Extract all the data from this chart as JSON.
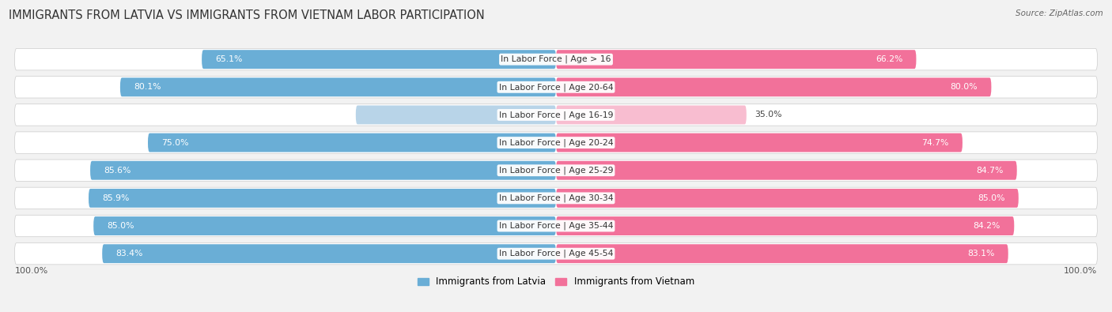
{
  "title": "IMMIGRANTS FROM LATVIA VS IMMIGRANTS FROM VIETNAM LABOR PARTICIPATION",
  "source": "Source: ZipAtlas.com",
  "categories": [
    "In Labor Force | Age > 16",
    "In Labor Force | Age 20-64",
    "In Labor Force | Age 16-19",
    "In Labor Force | Age 20-24",
    "In Labor Force | Age 25-29",
    "In Labor Force | Age 30-34",
    "In Labor Force | Age 35-44",
    "In Labor Force | Age 45-54"
  ],
  "latvia_values": [
    65.1,
    80.1,
    36.8,
    75.0,
    85.6,
    85.9,
    85.0,
    83.4
  ],
  "vietnam_values": [
    66.2,
    80.0,
    35.0,
    74.7,
    84.7,
    85.0,
    84.2,
    83.1
  ],
  "latvia_color": "#6AAED6",
  "vietnam_color": "#F2719A",
  "latvia_light_color": "#B8D4E8",
  "vietnam_light_color": "#F8BDD0",
  "background_color": "#f2f2f2",
  "row_bg_color": "#e8e8e8",
  "legend_latvia": "Immigrants from Latvia",
  "legend_vietnam": "Immigrants from Vietnam",
  "max_value": 100.0,
  "title_fontsize": 10.5,
  "label_fontsize": 7.8,
  "value_fontsize": 7.8
}
